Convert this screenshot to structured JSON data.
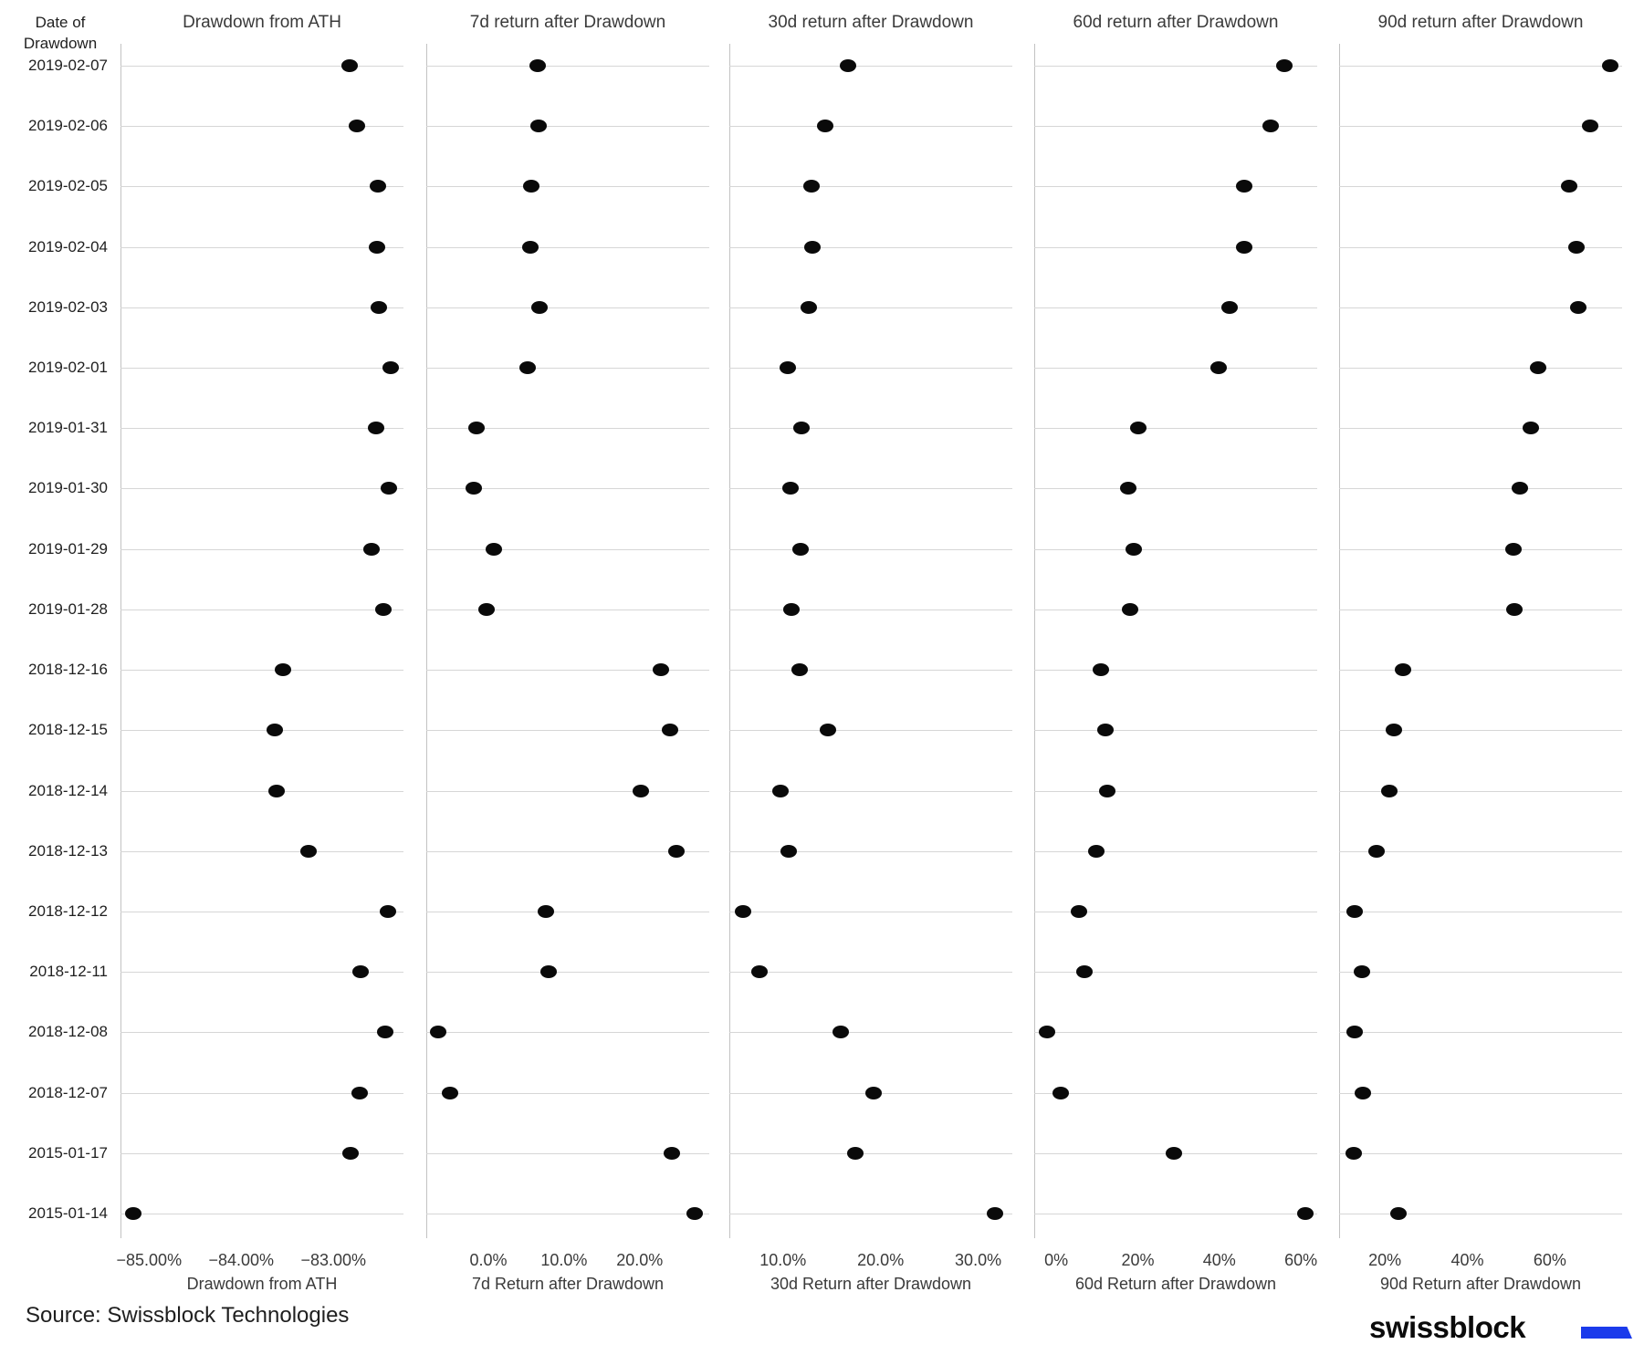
{
  "axis": {
    "row_header_line1": "Date of",
    "row_header_line2": "Drawdown"
  },
  "footer": {
    "source_note": "Source: Swissblock Technologies",
    "logo_text": "swissblock"
  },
  "colors": {
    "background": "#ffffff",
    "dot": "#0a0a0a",
    "grid": "#d6d6d6",
    "axis_line": "#c2c2c2",
    "text_primary": "#1f1f1f",
    "text_secondary": "#3a3a3a",
    "logo_blue": "#1b3beb"
  },
  "chart_data": {
    "type": "scatter",
    "subtype": "dot-plot-small-multiples",
    "y_axis_label": "Date of Drawdown",
    "grid": "horizontal-row-lines",
    "legend": "none",
    "categories": [
      "2019-02-07",
      "2019-02-06",
      "2019-02-05",
      "2019-02-04",
      "2019-02-03",
      "2019-02-01",
      "2019-01-31",
      "2019-01-30",
      "2019-01-29",
      "2019-01-28",
      "2018-12-16",
      "2018-12-15",
      "2018-12-14",
      "2018-12-13",
      "2018-12-12",
      "2018-12-11",
      "2018-12-08",
      "2018-12-07",
      "2015-01-17",
      "2015-01-14"
    ],
    "panels": [
      {
        "title": "Drawdown from ATH",
        "xlabel": "Drawdown from ATH",
        "unit": "%",
        "xlim": [
          -85.31,
          -82.24
        ],
        "ticks": [
          {
            "v": -85,
            "label": "−85.00%"
          },
          {
            "v": -84,
            "label": "−84.00%"
          },
          {
            "v": -83,
            "label": "−83.00%"
          }
        ],
        "values": [
          -82.82,
          -82.75,
          -82.52,
          -82.53,
          -82.51,
          -82.38,
          -82.54,
          -82.4,
          -82.59,
          -82.46,
          -83.55,
          -83.64,
          -83.62,
          -83.27,
          -82.41,
          -82.71,
          -82.44,
          -82.72,
          -82.81,
          -85.17
        ]
      },
      {
        "title": "7d return after Drawdown",
        "xlabel": "7d Return after Drawdown",
        "unit": "%",
        "xlim": [
          -8.2,
          29.2
        ],
        "ticks": [
          {
            "v": 0,
            "label": "0.0%"
          },
          {
            "v": 10,
            "label": "10.0%"
          },
          {
            "v": 20,
            "label": "20.0%"
          }
        ],
        "values": [
          6.5,
          6.6,
          5.7,
          5.5,
          6.7,
          5.2,
          -1.6,
          -1.9,
          0.7,
          -0.2,
          22.8,
          24.0,
          20.1,
          24.9,
          7.6,
          8.0,
          -6.6,
          -5.1,
          24.3,
          27.3
        ]
      },
      {
        "title": "30d return after Drawdown",
        "xlabel": "30d Return after Drawdown",
        "unit": "%",
        "xlim": [
          4.5,
          33.5
        ],
        "ticks": [
          {
            "v": 10,
            "label": "10.0%"
          },
          {
            "v": 20,
            "label": "20.0%"
          },
          {
            "v": 30,
            "label": "30.0%"
          }
        ],
        "values": [
          16.7,
          14.3,
          12.9,
          13.0,
          12.6,
          10.5,
          11.9,
          10.8,
          11.8,
          10.9,
          11.7,
          14.6,
          9.7,
          10.6,
          5.9,
          7.6,
          15.9,
          19.3,
          17.4,
          31.7
        ]
      },
      {
        "title": "60d return after Drawdown",
        "xlabel": "60d Return after Drawdown",
        "unit": "%",
        "xlim": [
          -5.4,
          64.0
        ],
        "ticks": [
          {
            "v": 0,
            "label": "0%"
          },
          {
            "v": 20,
            "label": "20%"
          },
          {
            "v": 40,
            "label": "40%"
          },
          {
            "v": 60,
            "label": "60%"
          }
        ],
        "values": [
          55.9,
          52.6,
          46.1,
          46.1,
          42.5,
          39.8,
          20.1,
          17.7,
          19.0,
          18.1,
          11.0,
          12.1,
          12.5,
          9.8,
          5.6,
          6.9,
          -2.2,
          1.1,
          28.9,
          61.1
        ]
      },
      {
        "title": "90d return after Drawdown",
        "xlabel": "90d Return after Drawdown",
        "unit": "%",
        "xlim": [
          8.9,
          77.5
        ],
        "ticks": [
          {
            "v": 20,
            "label": "20%"
          },
          {
            "v": 40,
            "label": "40%"
          },
          {
            "v": 60,
            "label": "60%"
          }
        ],
        "values": [
          74.6,
          69.8,
          64.7,
          66.4,
          66.9,
          57.2,
          55.4,
          52.7,
          51.2,
          51.4,
          24.4,
          22.2,
          21.1,
          18.0,
          12.7,
          14.5,
          12.7,
          14.7,
          12.5,
          23.3
        ]
      }
    ]
  }
}
